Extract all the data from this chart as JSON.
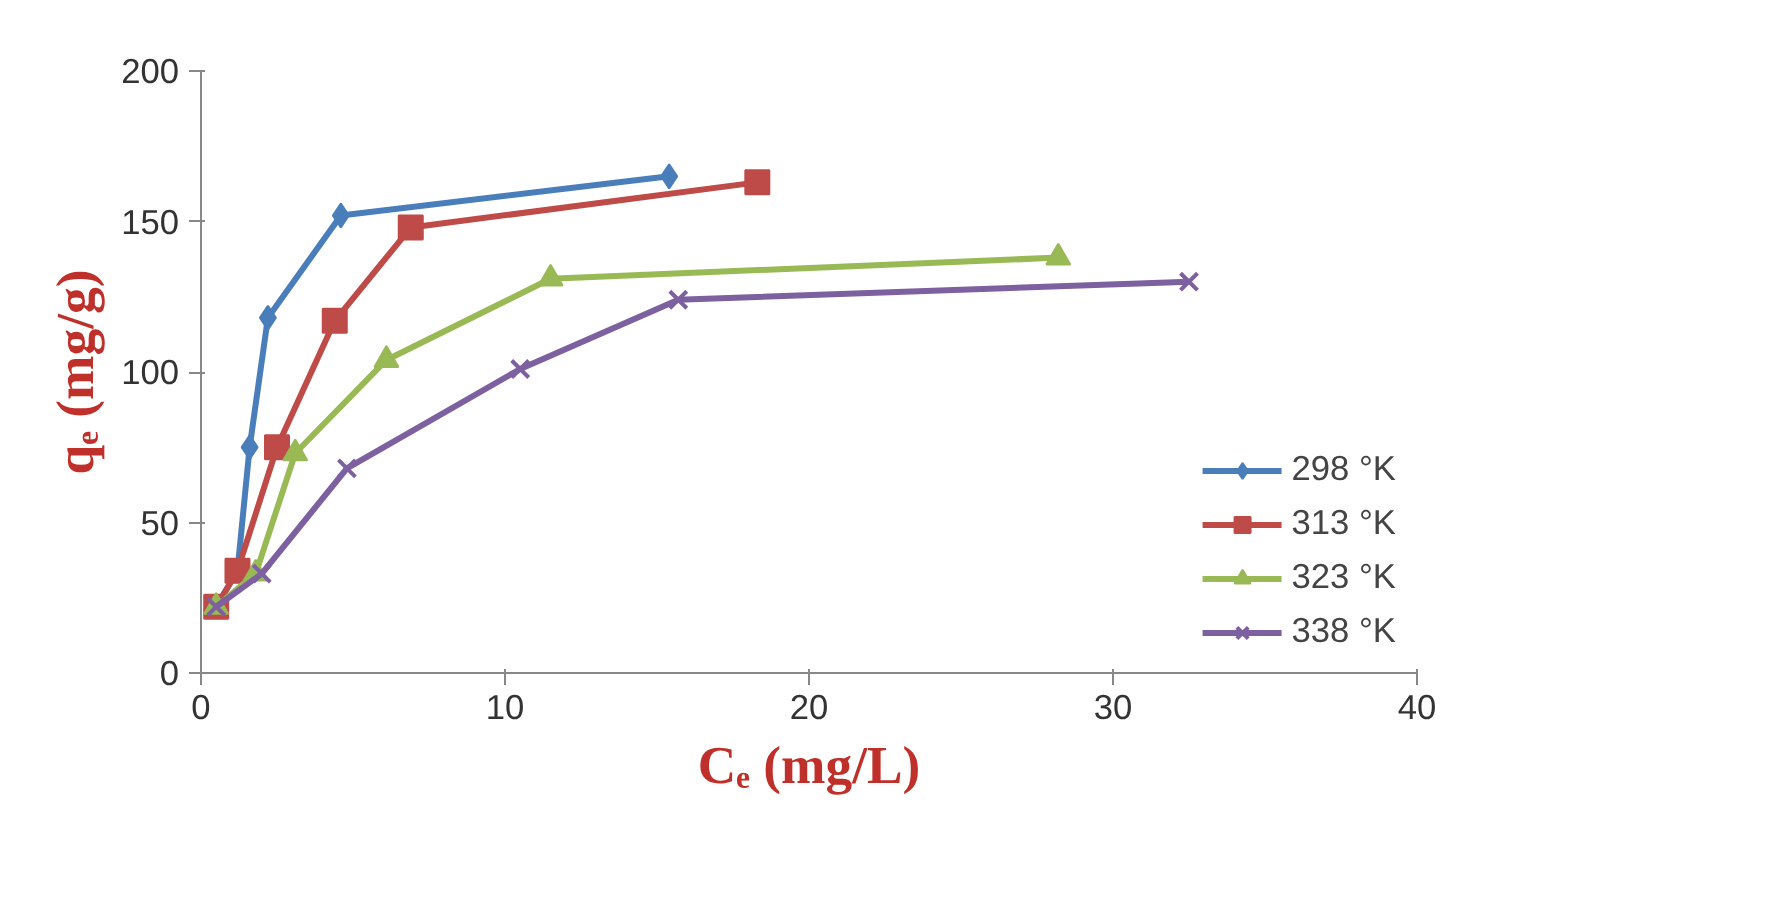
{
  "chart_data": {
    "type": "line",
    "xlabel": "Cₑ (mg/L)",
    "ylabel": "qₑ (mg/g)",
    "xlim": [
      0,
      40
    ],
    "xticks": [
      0,
      10,
      20,
      30,
      40
    ],
    "ylim": [
      0,
      200
    ],
    "yticks": [
      0,
      50,
      100,
      150,
      200
    ],
    "grid": false,
    "legend": "right",
    "line_style": "solid",
    "series": [
      {
        "name": "298 °K",
        "color": "#4a7ebb",
        "marker": "diamond",
        "x": [
          0.5,
          1.2,
          1.6,
          2.2,
          4.6,
          15.4
        ],
        "values": [
          22,
          34,
          75,
          118,
          152,
          165
        ]
      },
      {
        "name": "313 °K",
        "color": "#be4b48",
        "marker": "square",
        "x": [
          0.5,
          1.2,
          2.5,
          4.4,
          6.9,
          18.3
        ],
        "values": [
          22,
          34,
          75,
          117,
          148,
          163
        ]
      },
      {
        "name": "323 °K",
        "color": "#98b954",
        "marker": "triangle",
        "x": [
          0.5,
          1.8,
          3.1,
          6.1,
          11.5,
          28.2
        ],
        "values": [
          22,
          33,
          73,
          104,
          131,
          138
        ]
      },
      {
        "name": "338 °K",
        "color": "#7d60a0",
        "marker": "x",
        "x": [
          0.5,
          2.0,
          4.8,
          10.5,
          15.7,
          32.5
        ],
        "values": [
          22,
          33,
          68,
          101,
          124,
          130
        ]
      }
    ]
  }
}
